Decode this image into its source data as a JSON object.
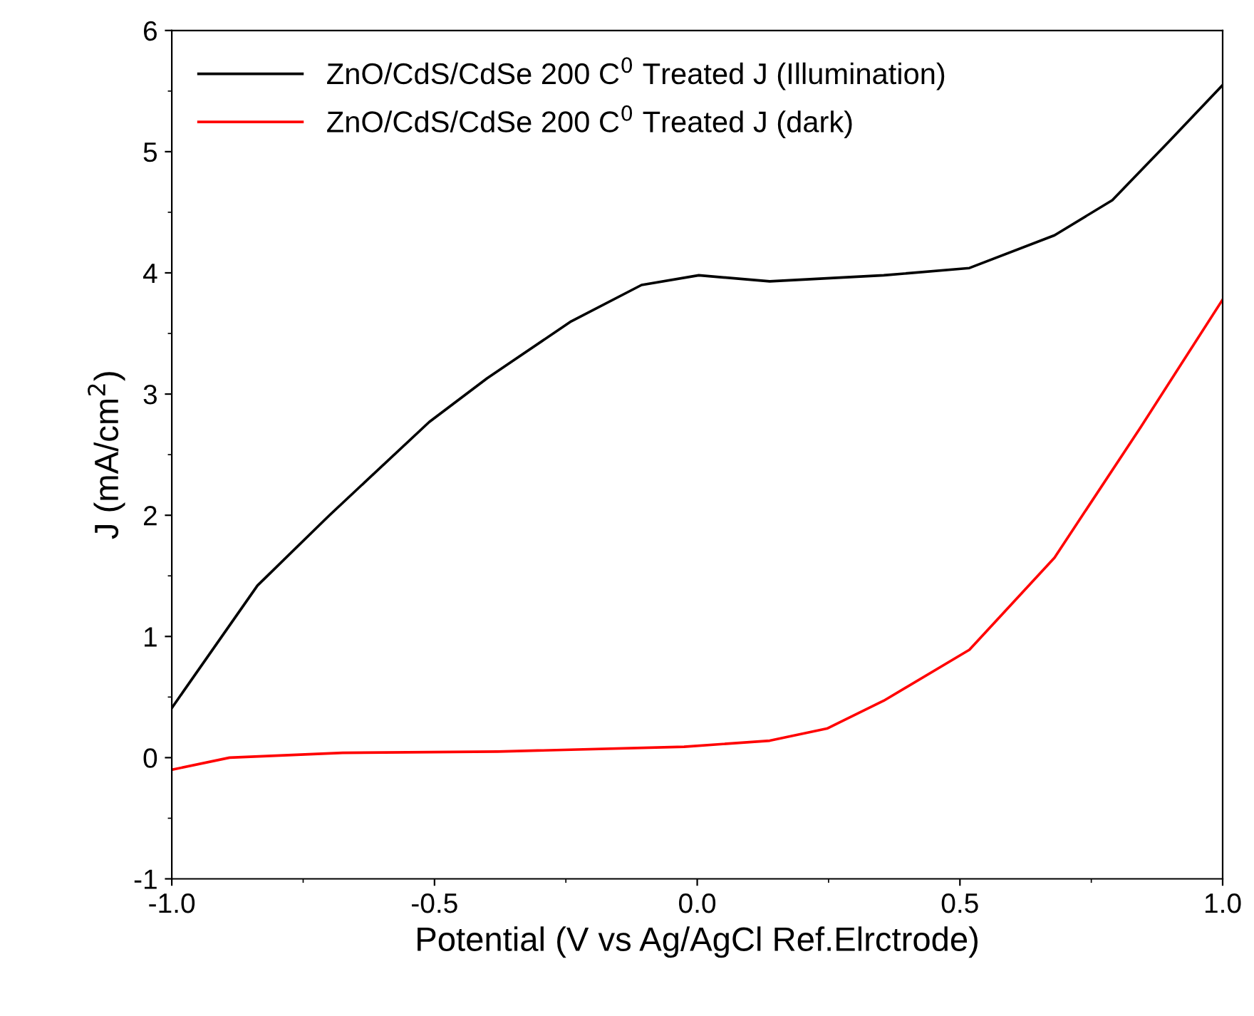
{
  "chart_data": {
    "type": "line",
    "xlabel": "Potential (V vs Ag/AgCl Ref.Elrctrode)",
    "ylabel": "J (mA/cm$^{2}$)",
    "xlim": [
      -1.0,
      1.0
    ],
    "ylim": [
      -1,
      6
    ],
    "xticks": [
      {
        "value": -1.0,
        "label": "-1.0"
      },
      {
        "value": -0.5,
        "label": "-0.5"
      },
      {
        "value": 0.0,
        "label": "0.0"
      },
      {
        "value": 0.5,
        "label": "0.5"
      },
      {
        "value": 1.0,
        "label": "1.0"
      }
    ],
    "yticks": [
      -1,
      0,
      1,
      2,
      3,
      4,
      5,
      6
    ],
    "grid": false,
    "legend": "top left",
    "marker": "none",
    "line_style": "solid",
    "series": [
      {
        "name": "ZnO/CdS/CdSe 200 C$^{0}$ Treated J (Illumination)",
        "color": "#000000",
        "x": [
          -1.0,
          -0.837,
          -0.7,
          -0.51,
          -0.4,
          -0.24,
          -0.106,
          0.003,
          0.138,
          0.355,
          0.518,
          0.68,
          0.79,
          0.897,
          1.0
        ],
        "values": [
          0.41,
          1.42,
          2.0,
          2.77,
          3.13,
          3.6,
          3.9,
          3.98,
          3.93,
          3.98,
          4.04,
          4.31,
          4.6,
          5.08,
          5.55
        ]
      },
      {
        "name": "ZnO/CdS/CdSe 200 C$^{0}$ Treated J (dark)",
        "color": "#ff0000",
        "x": [
          -1.0,
          -0.89,
          -0.675,
          -0.38,
          -0.025,
          0.138,
          0.247,
          0.355,
          0.518,
          0.68,
          0.843,
          1.0
        ],
        "values": [
          -0.1,
          0.0,
          0.04,
          0.05,
          0.09,
          0.14,
          0.24,
          0.47,
          0.89,
          1.65,
          2.72,
          3.78
        ]
      }
    ]
  }
}
